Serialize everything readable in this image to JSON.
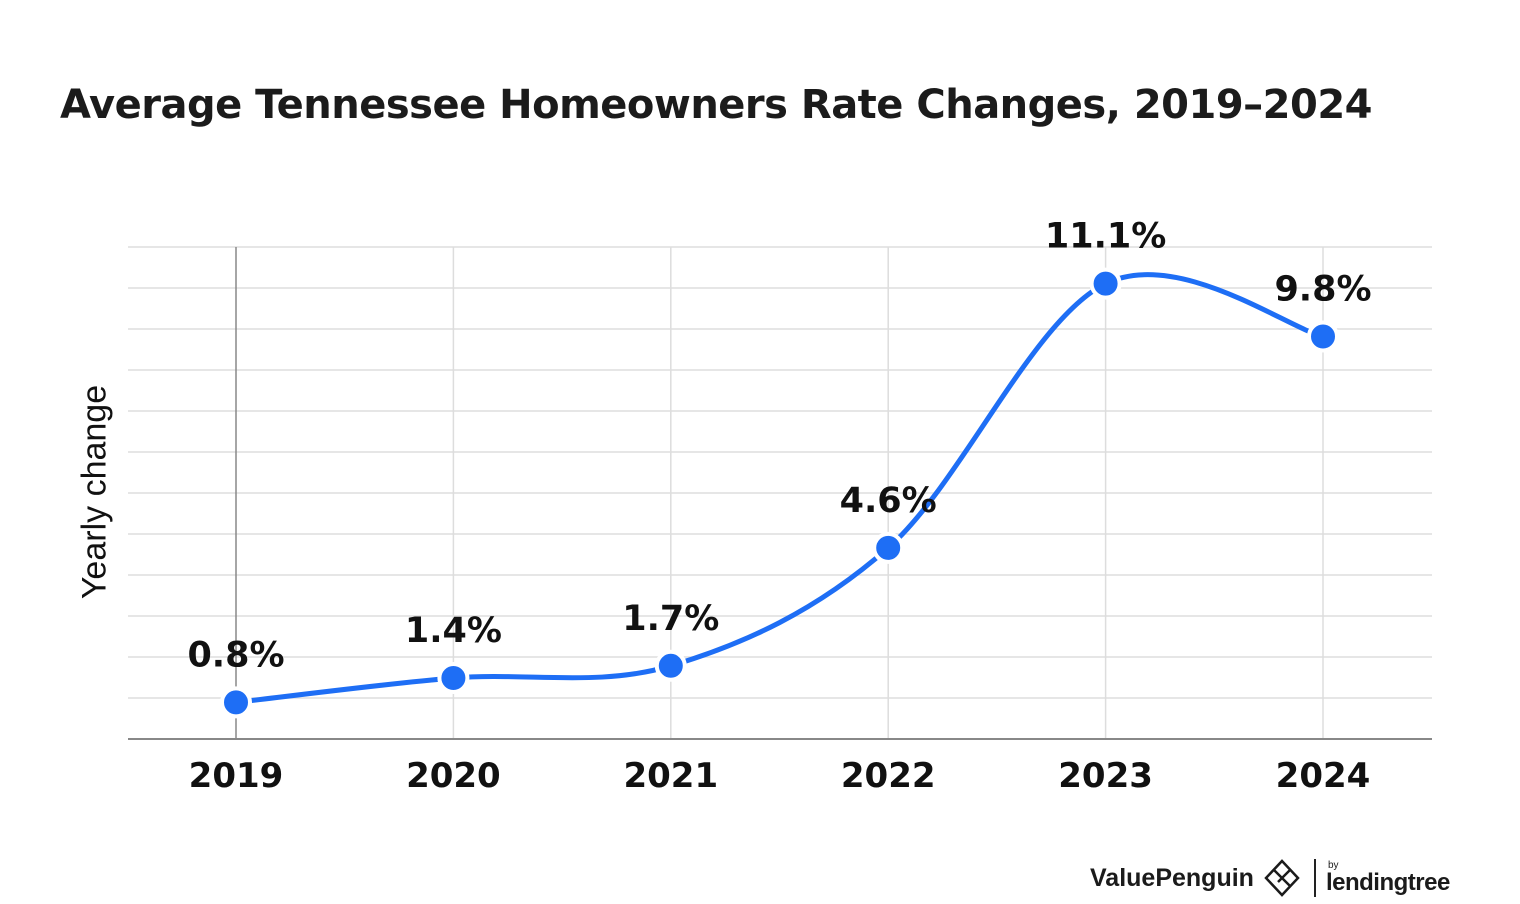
{
  "chart_data": {
    "type": "line",
    "title": "Average Tennessee Homeowners Rate Changes, 2019–2024",
    "xlabel": "",
    "ylabel": "Yearly change",
    "categories": [
      "2019",
      "2020",
      "2021",
      "2022",
      "2023",
      "2024"
    ],
    "series": [
      {
        "values": [
          0.8,
          1.4,
          1.7,
          4.6,
          11.1,
          9.8
        ],
        "labels": [
          "0.8%",
          "1.4%",
          "1.7%",
          "4.6%",
          "11.1%",
          "9.8%"
        ]
      }
    ],
    "ylim": [
      -0.1,
      12.0
    ],
    "grid": true,
    "legend": "none",
    "colors": {
      "line": "#1e6ef5",
      "grid": "#dddddd",
      "axis": "#888888"
    }
  },
  "footer": {
    "brand": "ValuePenguin",
    "by": "by",
    "partner": "lendingtree"
  }
}
